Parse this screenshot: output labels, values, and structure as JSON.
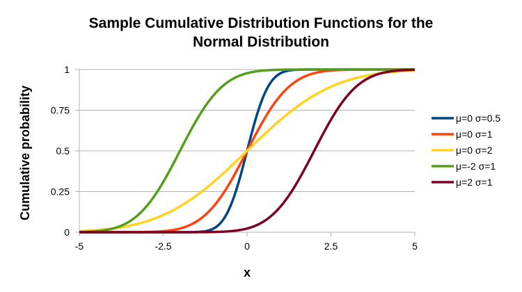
{
  "chart_data": {
    "type": "line",
    "title_lines": [
      "Sample Cumulative Distribution Functions for the",
      "Normal Distribution"
    ],
    "xlabel": "x",
    "ylabel": "Cumulative probability",
    "xlim": [
      -5,
      5
    ],
    "ylim": [
      0,
      1
    ],
    "x_ticks": [
      -5,
      -2.5,
      0,
      2.5,
      5
    ],
    "x_tick_labels": [
      "-5",
      "-2.5",
      "0",
      "2.5",
      "5"
    ],
    "y_ticks": [
      0,
      0.25,
      0.5,
      0.75,
      1
    ],
    "y_tick_labels": [
      "0",
      "0.25",
      "0.5",
      "0.75",
      "1"
    ],
    "grid": "horizontal",
    "legend_position": "right",
    "series": [
      {
        "name": "μ=0 σ=0.5",
        "mu": 0,
        "sigma": 0.5,
        "color": "#004586"
      },
      {
        "name": "μ=0 σ=1",
        "mu": 0,
        "sigma": 1,
        "color": "#ff420e"
      },
      {
        "name": "μ=0 σ=2",
        "mu": 0,
        "sigma": 2,
        "color": "#ffd320"
      },
      {
        "name": "μ=-2 σ=1",
        "mu": -2,
        "sigma": 1,
        "color": "#579d1c"
      },
      {
        "name": "μ=2 σ=1",
        "mu": 2,
        "sigma": 1,
        "color": "#7e0021"
      }
    ]
  }
}
